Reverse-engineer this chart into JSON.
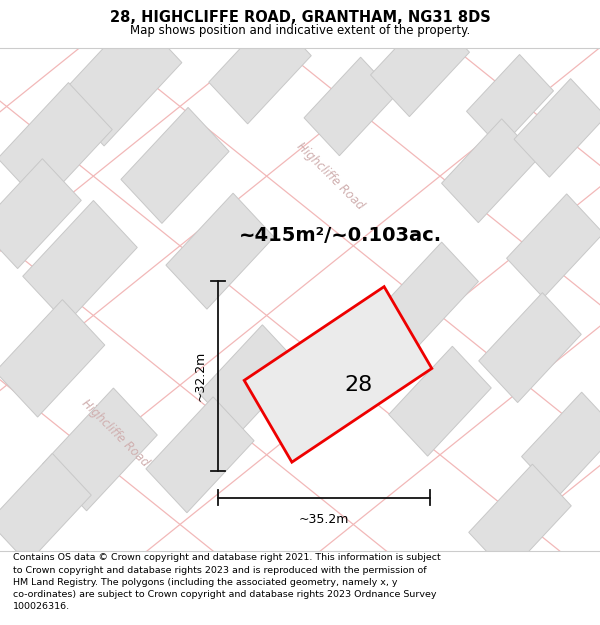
{
  "title": "28, HIGHCLIFFE ROAD, GRANTHAM, NG31 8DS",
  "subtitle": "Map shows position and indicative extent of the property.",
  "footer": "Contains OS data © Crown copyright and database right 2021. This information is subject\nto Crown copyright and database rights 2023 and is reproduced with the permission of\nHM Land Registry. The polygons (including the associated geometry, namely x, y\nco-ordinates) are subject to Crown copyright and database rights 2023 Ordnance Survey\n100026316.",
  "area_text": "~415m²/~0.103ac.",
  "dim_width": "~35.2m",
  "dim_height": "~32.2m",
  "plot_number": "28",
  "bg_color": "#f7f7f7",
  "plot_color": "#ee0000",
  "plot_fill": "#ebebeb",
  "road_line_color": "#f2b8b8",
  "building_color": "#e0e0e0",
  "building_edge": "#c8c8c8",
  "road_label_color": "#d0b0b0",
  "dim_line_color": "#111111",
  "title_fontsize": 10.5,
  "subtitle_fontsize": 8.5,
  "footer_fontsize": 6.8,
  "area_fontsize": 14,
  "plot_number_fontsize": 16,
  "dim_fontsize": 9,
  "road_label_fontsize": 8.5
}
